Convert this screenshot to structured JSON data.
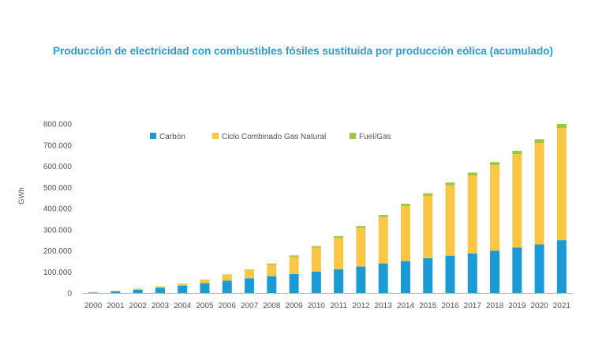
{
  "chart_data": {
    "type": "bar",
    "stacked": true,
    "title": "Producción de electricidad con combustibles fósiles sustituida por producción eólica (acumulado)",
    "ylabel": "GWh",
    "xlabel": "",
    "ylim": [
      0,
      800000
    ],
    "yticks": [
      0,
      100000,
      200000,
      300000,
      400000,
      500000,
      600000,
      700000,
      800000
    ],
    "ytick_labels": [
      "0",
      "100.000",
      "200.000",
      "300.000",
      "400.000",
      "500.000",
      "600.000",
      "700.000",
      "800.000"
    ],
    "grid": false,
    "legend_position": "top-left",
    "categories": [
      "2000",
      "2001",
      "2002",
      "2003",
      "2004",
      "2005",
      "2006",
      "2007",
      "2008",
      "2009",
      "2010",
      "2011",
      "2012",
      "2013",
      "2014",
      "2015",
      "2016",
      "2017",
      "2018",
      "2019",
      "2020",
      "2021"
    ],
    "series": [
      {
        "name": "Carbón",
        "color": "#1b9ad6",
        "values": [
          2000,
          8000,
          16000,
          25000,
          35000,
          47000,
          59000,
          70000,
          80000,
          90000,
          102000,
          113000,
          125000,
          140000,
          152000,
          165000,
          177000,
          188000,
          200000,
          215000,
          230000,
          250000
        ]
      },
      {
        "name": "Ciclo Combinado Gas Natural",
        "color": "#f9c744",
        "values": [
          2000,
          3000,
          4000,
          6000,
          8000,
          15000,
          26000,
          38000,
          55000,
          82000,
          113000,
          148000,
          183000,
          220000,
          260000,
          295000,
          333000,
          368000,
          405000,
          442000,
          480000,
          530000
        ]
      },
      {
        "name": "Fuel/Gas",
        "color": "#9cc83c",
        "values": [
          500,
          600,
          800,
          1000,
          1500,
          2000,
          3000,
          3500,
          5000,
          6000,
          7000,
          8000,
          9000,
          10000,
          11000,
          12000,
          13000,
          14000,
          15000,
          16000,
          18000,
          20000
        ]
      }
    ]
  }
}
